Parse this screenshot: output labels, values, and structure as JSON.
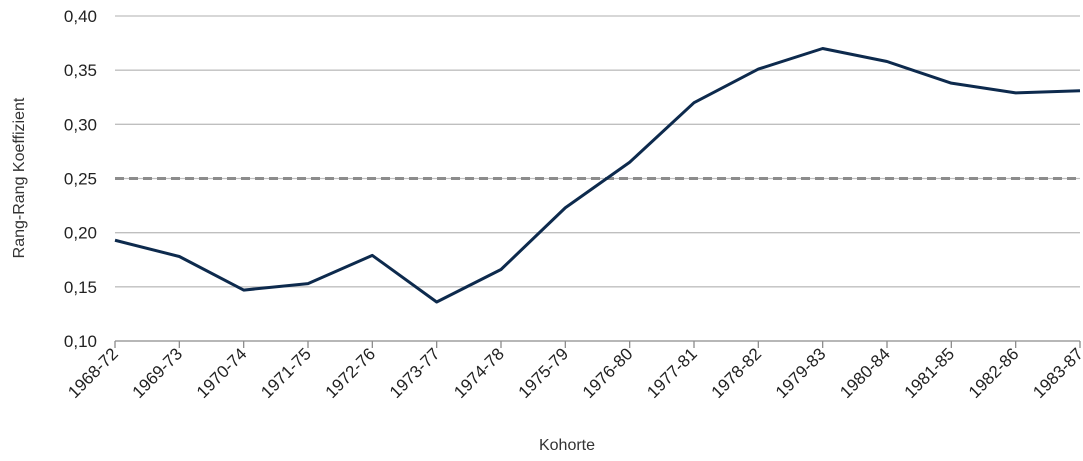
{
  "chart_data": {
    "type": "line",
    "x_label": "Kohorte",
    "y_label": "Rang-Rang Koeffizient",
    "categories": [
      "1968-72",
      "1969-73",
      "1970-74",
      "1971-75",
      "1972-76",
      "1973-77",
      "1974-78",
      "1975-79",
      "1976-80",
      "1977-81",
      "1978-82",
      "1979-83",
      "1980-84",
      "1981-85",
      "1982-86",
      "1983-87"
    ],
    "series": [
      {
        "color": "#0d2a4d",
        "values": [
          0.193,
          0.178,
          0.147,
          0.153,
          0.179,
          0.136,
          0.166,
          0.223,
          0.265,
          0.32,
          0.351,
          0.37,
          0.358,
          0.338,
          0.329,
          0.331
        ]
      }
    ],
    "reference_line": {
      "value": 0.25,
      "color": "#8c8c8c",
      "dashed": true
    },
    "ylim": [
      0.1,
      0.4
    ],
    "yticks": [
      {
        "value": 0.1,
        "label": "0,10"
      },
      {
        "value": 0.15,
        "label": "0,15"
      },
      {
        "value": 0.2,
        "label": "0,20"
      },
      {
        "value": 0.25,
        "label": "0,25"
      },
      {
        "value": 0.3,
        "label": "0,30"
      },
      {
        "value": 0.35,
        "label": "0,35"
      },
      {
        "value": 0.4,
        "label": "0,40"
      }
    ],
    "grid": true
  }
}
